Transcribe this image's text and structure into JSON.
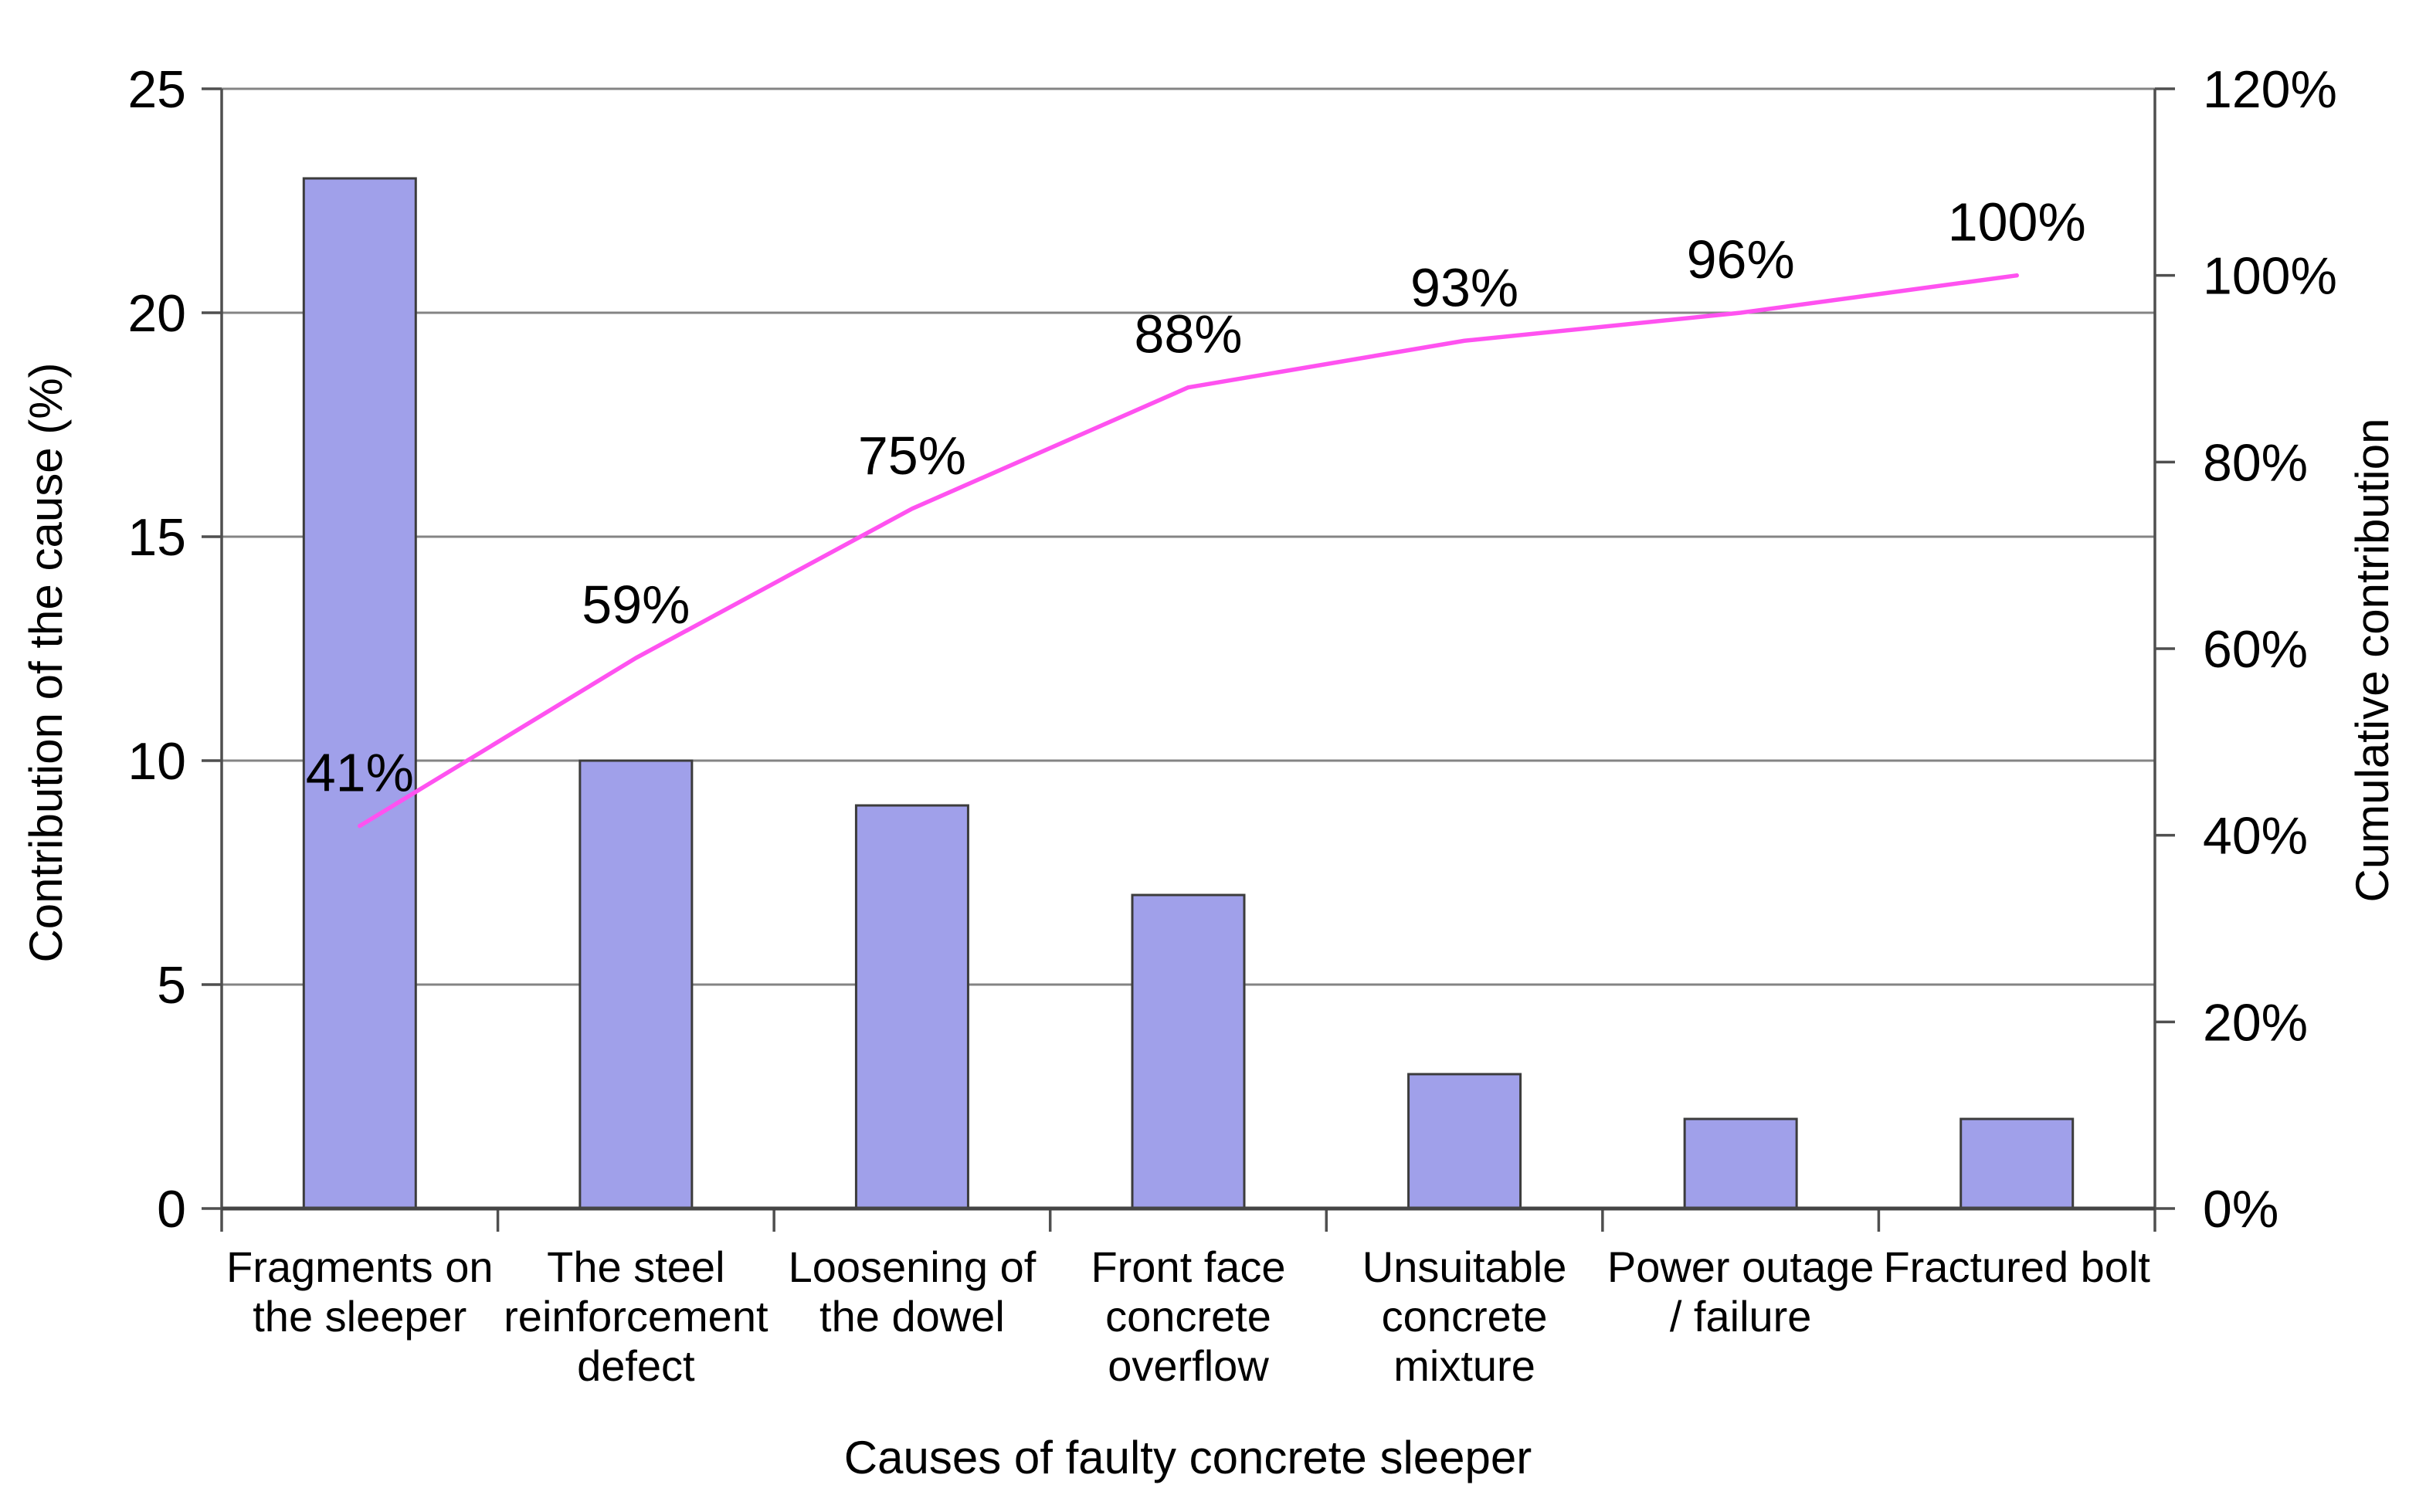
{
  "chart_data": {
    "type": "bar",
    "subtype": "pareto-combo",
    "title": "",
    "background": "#ffffff",
    "grid": true,
    "legend": false,
    "text_color": "#000000",
    "grid_color": "#848484",
    "axis_color": "#4f4f4f",
    "categories": [
      "Fragments on the sleeper",
      "The steel reinforcement defect",
      "Loosening of the dowel",
      "Front face concrete overflow",
      "Unsuitable concrete mixture",
      "Power outage / failure",
      "Fractured bolt"
    ],
    "category_label_lines": [
      [
        "Fragments on",
        "the sleeper"
      ],
      [
        "The steel",
        "reinforcement",
        "defect"
      ],
      [
        "Loosening of",
        "the dowel"
      ],
      [
        "Front face",
        "concrete",
        "overflow"
      ],
      [
        "Unsuitable",
        "concrete",
        "mixture"
      ],
      [
        "Power outage",
        "/ failure"
      ],
      [
        "Fractured bolt"
      ]
    ],
    "series": [
      {
        "name": "Contribution of the cause",
        "chart": "bar",
        "axis": "left",
        "values": [
          23,
          10,
          9,
          7,
          3,
          2,
          2
        ],
        "color": "#a0a0ea",
        "border_color": "#3c3c3c"
      },
      {
        "name": "Cumulative contribution",
        "chart": "line",
        "axis": "right",
        "values": [
          41,
          59,
          75,
          88,
          93,
          96,
          100
        ],
        "point_labels": [
          "41%",
          "59%",
          "75%",
          "88%",
          "93%",
          "96%",
          "100%"
        ],
        "color": "#ff52f0"
      }
    ],
    "left_axis": {
      "title": "Contribution of the cause (%)",
      "min": 0,
      "max": 25,
      "step": 5,
      "tick_labels": [
        "0",
        "5",
        "10",
        "15",
        "20",
        "25"
      ]
    },
    "right_axis": {
      "title": "Cumulative contribution",
      "min": 0,
      "max": 120,
      "step": 20,
      "tick_labels": [
        "0%",
        "20%",
        "40%",
        "60%",
        "80%",
        "100%",
        "120%"
      ]
    },
    "x_axis": {
      "title": "Causes of faulty concrete sleeper"
    }
  }
}
